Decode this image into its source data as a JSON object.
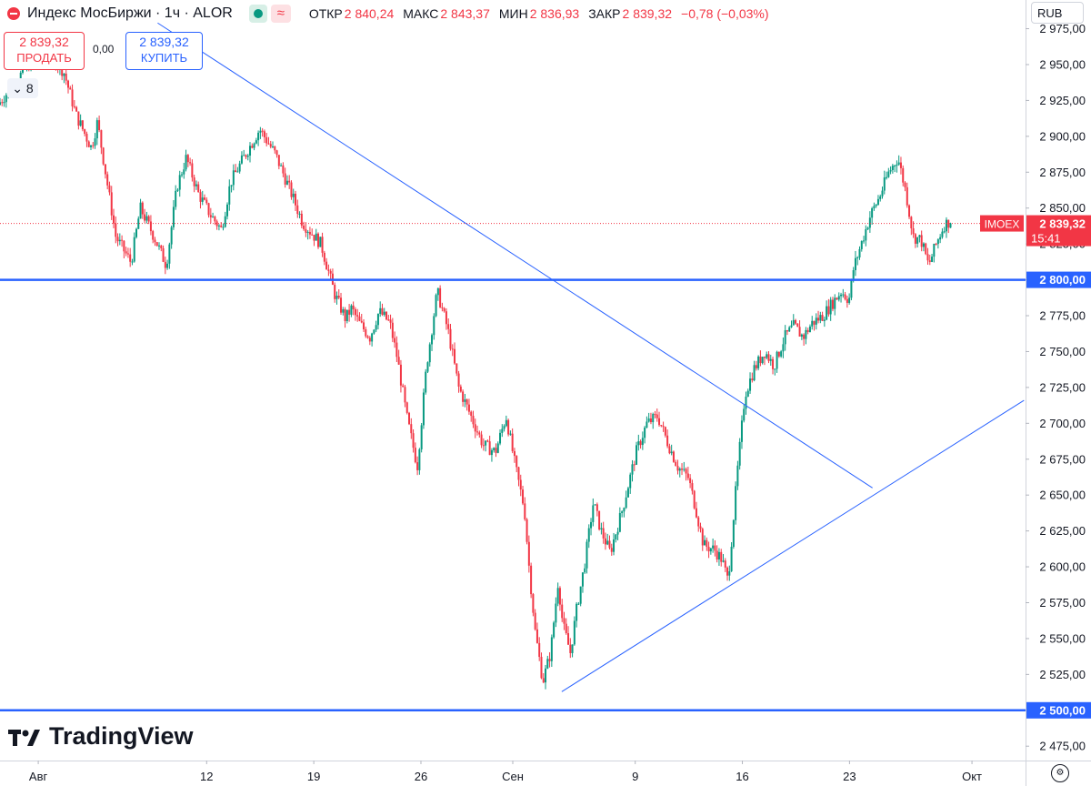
{
  "header": {
    "title": "Индекс МосБиржи · 1ч · ALOR",
    "wave_glyph": "≈",
    "open_label": "ОТКР",
    "open_value": "2 840,24",
    "high_label": "МАКС",
    "high_value": "2 843,37",
    "low_label": "МИН",
    "low_value": "2 836,93",
    "close_label": "ЗАКР",
    "close_value": "2 839,32",
    "change": "−0,78 (−0,03%)"
  },
  "trade": {
    "sell_price": "2 839,32",
    "sell_label": "ПРОДАТЬ",
    "spread": "0,00",
    "buy_price": "2 839,32",
    "buy_label": "КУПИТЬ",
    "collapse_count": "8"
  },
  "currency": "RUB",
  "logo_text": "TradingView",
  "colors": {
    "up": "#089981",
    "down": "#f23645",
    "line": "#2962ff",
    "accent": "#f23645"
  },
  "icons": [
    "status-dot-icon",
    "eye-icon",
    "wave-icon",
    "chevron-down-icon",
    "tradingview-logo-icon",
    "settings-icon"
  ],
  "chart_data": {
    "type": "candlestick",
    "title": "Индекс МосБиржи · 1ч · ALOR",
    "ylim": [
      2465,
      2995
    ],
    "y_ticks": [
      "2 975,00",
      "2 950,00",
      "2 925,00",
      "2 900,00",
      "2 875,00",
      "2 850,00",
      "2 825,00",
      "2 800,00",
      "2 775,00",
      "2 750,00",
      "2 725,00",
      "2 700,00",
      "2 675,00",
      "2 650,00",
      "2 625,00",
      "2 600,00",
      "2 575,00",
      "2 550,00",
      "2 525,00",
      "2 500,00",
      "2 475,00"
    ],
    "y_tick_values": [
      2975,
      2950,
      2925,
      2900,
      2875,
      2850,
      2825,
      2800,
      2775,
      2750,
      2725,
      2700,
      2675,
      2650,
      2625,
      2600,
      2575,
      2550,
      2525,
      2500,
      2475
    ],
    "x_ticks": [
      "Авг",
      "12",
      "19",
      "26",
      "Сен",
      "9",
      "16",
      "23",
      "Окт"
    ],
    "x_tick_days": [
      1,
      12,
      19,
      26,
      32,
      40,
      47,
      54,
      62
    ],
    "x_range_days": [
      -1.5,
      65.5
    ],
    "last_price": {
      "symbol": "IMOEX",
      "value": 2839.32,
      "label": "2 839,32",
      "time": "15:41"
    },
    "horizontal_lines": [
      {
        "value": 2800,
        "label": "2 800,00"
      },
      {
        "value": 2500,
        "label": "2 500,00"
      }
    ],
    "trend_lines": [
      {
        "from": [
          8.8,
          2979
        ],
        "to": [
          55.5,
          2655
        ]
      },
      {
        "from": [
          35.2,
          2513
        ],
        "to": [
          65.4,
          2716
        ]
      }
    ],
    "path": [
      [
        -1.5,
        2922
      ],
      [
        0.5,
        2950
      ],
      [
        1.5,
        2962
      ],
      [
        2.8,
        2945
      ],
      [
        3.6,
        2915
      ],
      [
        4.6,
        2892
      ],
      [
        5,
        2910
      ],
      [
        6.2,
        2830
      ],
      [
        7.2,
        2812
      ],
      [
        7.8,
        2850
      ],
      [
        8.7,
        2830
      ],
      [
        9.5,
        2810
      ],
      [
        10.2,
        2865
      ],
      [
        10.8,
        2885
      ],
      [
        11.6,
        2860
      ],
      [
        12.4,
        2845
      ],
      [
        13.1,
        2835
      ],
      [
        13.7,
        2868
      ],
      [
        14.7,
        2888
      ],
      [
        15.6,
        2905
      ],
      [
        16.6,
        2888
      ],
      [
        17.6,
        2862
      ],
      [
        18.4,
        2840
      ],
      [
        19.6,
        2825
      ],
      [
        20.5,
        2790
      ],
      [
        21.2,
        2773
      ],
      [
        21.6,
        2780
      ],
      [
        22.1,
        2770
      ],
      [
        22.8,
        2760
      ],
      [
        23.4,
        2778
      ],
      [
        24.1,
        2770
      ],
      [
        24.6,
        2745
      ],
      [
        25.2,
        2705
      ],
      [
        25.9,
        2670
      ],
      [
        26.5,
        2740
      ],
      [
        27.2,
        2792
      ],
      [
        27.9,
        2765
      ],
      [
        28.6,
        2725
      ],
      [
        29.2,
        2710
      ],
      [
        30.2,
        2685
      ],
      [
        31,
        2680
      ],
      [
        31.7,
        2705
      ],
      [
        32.3,
        2670
      ],
      [
        32.9,
        2640
      ],
      [
        33.2,
        2600
      ],
      [
        33.6,
        2555
      ],
      [
        34.1,
        2520
      ],
      [
        34.6,
        2540
      ],
      [
        35.1,
        2590
      ],
      [
        35.4,
        2560
      ],
      [
        35.9,
        2540
      ],
      [
        36.3,
        2570
      ],
      [
        36.8,
        2600
      ],
      [
        37.4,
        2645
      ],
      [
        37.9,
        2625
      ],
      [
        38.5,
        2610
      ],
      [
        39.3,
        2640
      ],
      [
        40.2,
        2680
      ],
      [
        40.9,
        2700
      ],
      [
        41.6,
        2705
      ],
      [
        42.2,
        2688
      ],
      [
        42.9,
        2670
      ],
      [
        43.6,
        2662
      ],
      [
        44.1,
        2640
      ],
      [
        44.6,
        2615
      ],
      [
        45.3,
        2612
      ],
      [
        45.8,
        2605
      ],
      [
        46.2,
        2590
      ],
      [
        46.8,
        2665
      ],
      [
        47.3,
        2720
      ],
      [
        47.9,
        2738
      ],
      [
        48.6,
        2750
      ],
      [
        49.2,
        2740
      ],
      [
        49.9,
        2760
      ],
      [
        50.5,
        2768
      ],
      [
        51.1,
        2760
      ],
      [
        51.7,
        2770
      ],
      [
        52.4,
        2775
      ],
      [
        53.1,
        2785
      ],
      [
        53.6,
        2792
      ],
      [
        54.1,
        2786
      ],
      [
        54.4,
        2808
      ],
      [
        54.9,
        2825
      ],
      [
        55.5,
        2845
      ],
      [
        56.1,
        2858
      ],
      [
        56.7,
        2875
      ],
      [
        57.3,
        2885
      ],
      [
        57.8,
        2862
      ],
      [
        58.3,
        2830
      ],
      [
        58.8,
        2828
      ],
      [
        59.3,
        2810
      ],
      [
        59.8,
        2825
      ],
      [
        60.3,
        2838
      ],
      [
        60.6,
        2840.24
      ],
      [
        60.7,
        2839.32
      ]
    ]
  }
}
